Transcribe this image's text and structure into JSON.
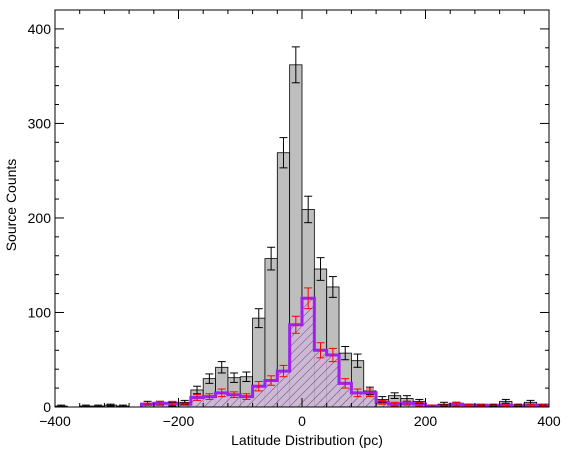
{
  "chart_data": {
    "type": "bar",
    "title": "",
    "xlabel": "Latitude Distribution (pc)",
    "ylabel": "Source Counts",
    "xlim": [
      -400,
      400
    ],
    "ylim": [
      0,
      420
    ],
    "bin_width": 20,
    "xticks": [
      -400,
      -200,
      0,
      200,
      400
    ],
    "yticks": [
      0,
      100,
      200,
      300,
      400
    ],
    "xtick_labels": [
      "−400",
      "−200",
      "0",
      "200",
      "400"
    ],
    "ytick_labels": [
      "0",
      "100",
      "200",
      "300",
      "400"
    ],
    "x": [
      -390,
      -370,
      -350,
      -330,
      -310,
      -290,
      -270,
      -250,
      -230,
      -210,
      -190,
      -170,
      -150,
      -130,
      -110,
      -90,
      -70,
      -50,
      -30,
      -10,
      10,
      30,
      50,
      70,
      90,
      110,
      130,
      150,
      170,
      190,
      210,
      230,
      250,
      270,
      290,
      310,
      330,
      350,
      370,
      390
    ],
    "series": [
      {
        "style": "gray-filled",
        "color": "#bebebe",
        "values": [
          1,
          0,
          1,
          1,
          2,
          1,
          0,
          4,
          4,
          3,
          5,
          18,
          30,
          42,
          31,
          32,
          94,
          157,
          269,
          362,
          209,
          146,
          127,
          57,
          49,
          17,
          8,
          12,
          9,
          6,
          1,
          3,
          3,
          2,
          1,
          2,
          6,
          2,
          5,
          1
        ],
        "errors": [
          1,
          0,
          1,
          1,
          1,
          1,
          0,
          2,
          2,
          2,
          2,
          4,
          5,
          6,
          5,
          5,
          10,
          12,
          16,
          19,
          14,
          12,
          11,
          7,
          7,
          4,
          3,
          3,
          3,
          2,
          1,
          2,
          2,
          1,
          1,
          1,
          2,
          1,
          2,
          1
        ]
      },
      {
        "style": "purple-hatched",
        "color": "#a020f0",
        "error_color": "#ff0000",
        "values": [
          0,
          0,
          0,
          0,
          0,
          0,
          0,
          3,
          4,
          4,
          3,
          10,
          11,
          15,
          13,
          11,
          22,
          28,
          38,
          87,
          115,
          60,
          55,
          25,
          15,
          15,
          5,
          3,
          4,
          3,
          1,
          1,
          3,
          2,
          2,
          1,
          2,
          1,
          2,
          2
        ],
        "errors": [
          0,
          0,
          0,
          0,
          0,
          0,
          0,
          1,
          2,
          2,
          1,
          3,
          3,
          4,
          3,
          3,
          5,
          5,
          6,
          9,
          11,
          8,
          7,
          5,
          4,
          4,
          2,
          2,
          2,
          2,
          1,
          1,
          2,
          1,
          1,
          1,
          1,
          1,
          1,
          1
        ]
      }
    ],
    "grid": false,
    "colors": {
      "axis": "#000000",
      "bar_fill": "#bebebe",
      "hatch_fill": "#cdb8d8",
      "outline": "#a020f0",
      "error_hatched": "#ff0000"
    }
  }
}
